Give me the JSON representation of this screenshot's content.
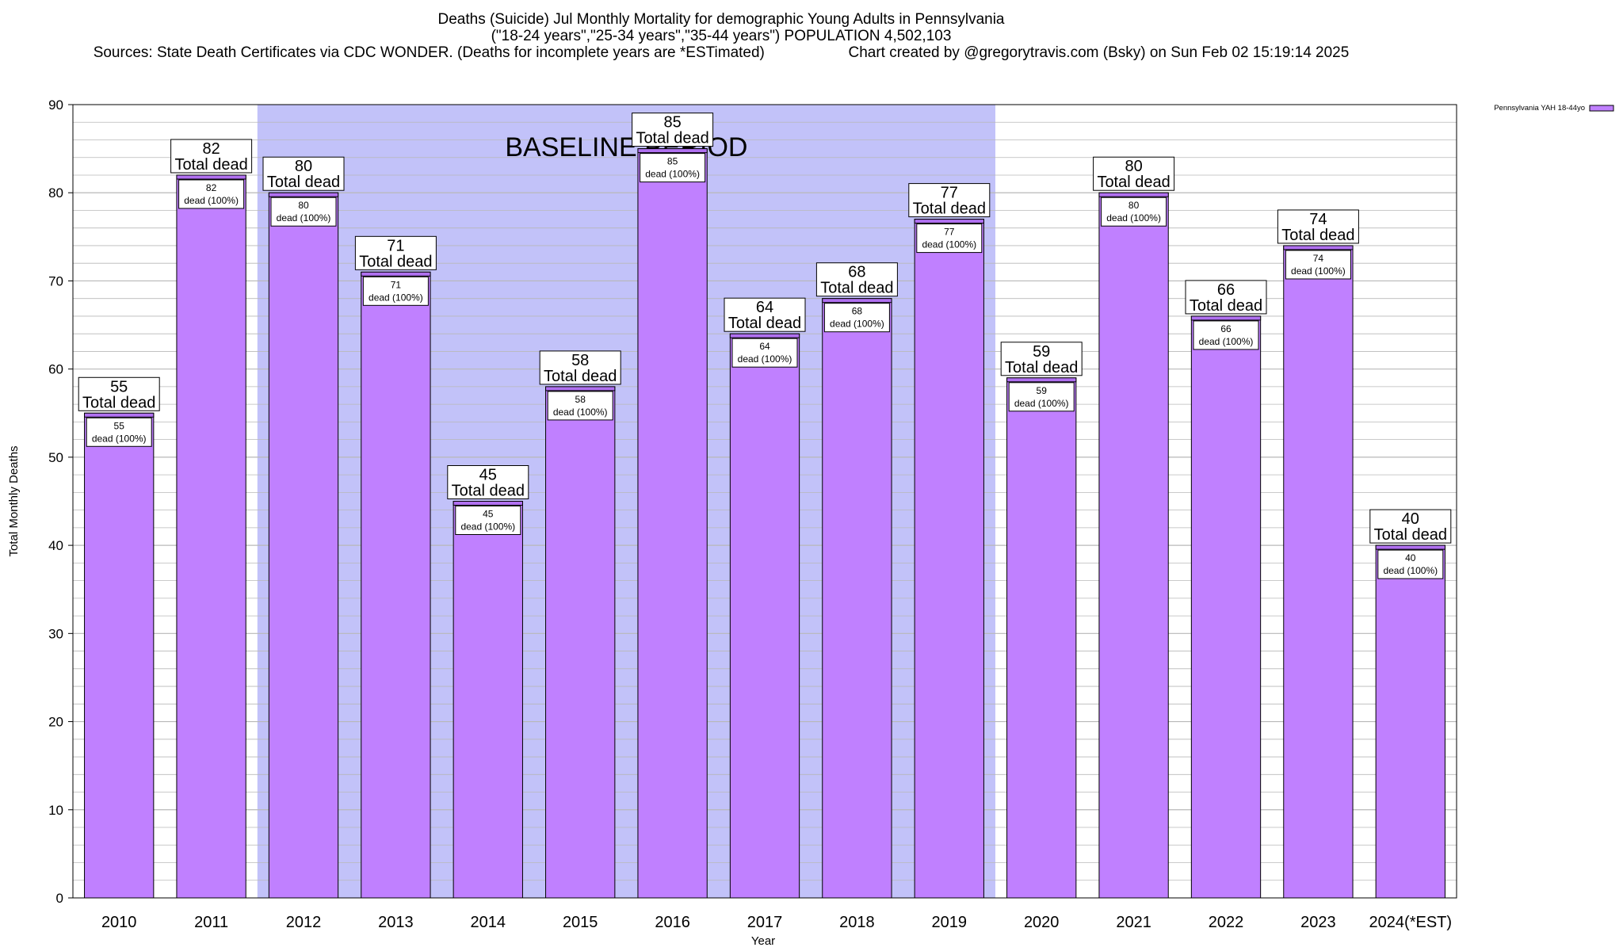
{
  "header": {
    "title": "Deaths (Suicide) Jul Monthly Mortality for demographic Young Adults in Pennsylvania",
    "subtitle": "(\"18-24 years\",\"25-34 years\",\"35-44 years\") POPULATION 4,502,103",
    "sources": "Sources: State Death Certificates via CDC WONDER. (Deaths for incomplete years are *ESTimated)",
    "credit": "Chart created by @gregorytravis.com (Bsky) on Sun Feb 02 15:19:14 2025"
  },
  "chart_data": {
    "type": "bar",
    "xlabel": "Year",
    "ylabel": "Total Monthly Deaths",
    "ylim": [
      0,
      90
    ],
    "yticks": [
      0,
      10,
      20,
      30,
      40,
      50,
      60,
      70,
      80,
      90
    ],
    "grid": "horizontal, minor every 2",
    "legend_position": "top-right, outside plot",
    "categories": [
      "2010",
      "2011",
      "2012",
      "2013",
      "2014",
      "2015",
      "2016",
      "2017",
      "2018",
      "2019",
      "2020",
      "2021",
      "2022",
      "2023",
      "2024(*EST)"
    ],
    "series": [
      {
        "name": "Pennsylvania YAH 18-44yo",
        "values": [
          55,
          82,
          80,
          71,
          45,
          58,
          85,
          64,
          68,
          77,
          59,
          80,
          66,
          74,
          40
        ]
      }
    ],
    "total_label": "Total dead",
    "segment_label": "dead (100%)",
    "annotations": [
      {
        "text": "BASELINE PERIOD",
        "x_start": "2012",
        "x_end": "2019"
      }
    ],
    "colors": {
      "bar": "#c080ff",
      "bar_cap": "#b070f0",
      "baseline_band": "#c2c2f9",
      "grid": "#b8b8b8"
    }
  }
}
